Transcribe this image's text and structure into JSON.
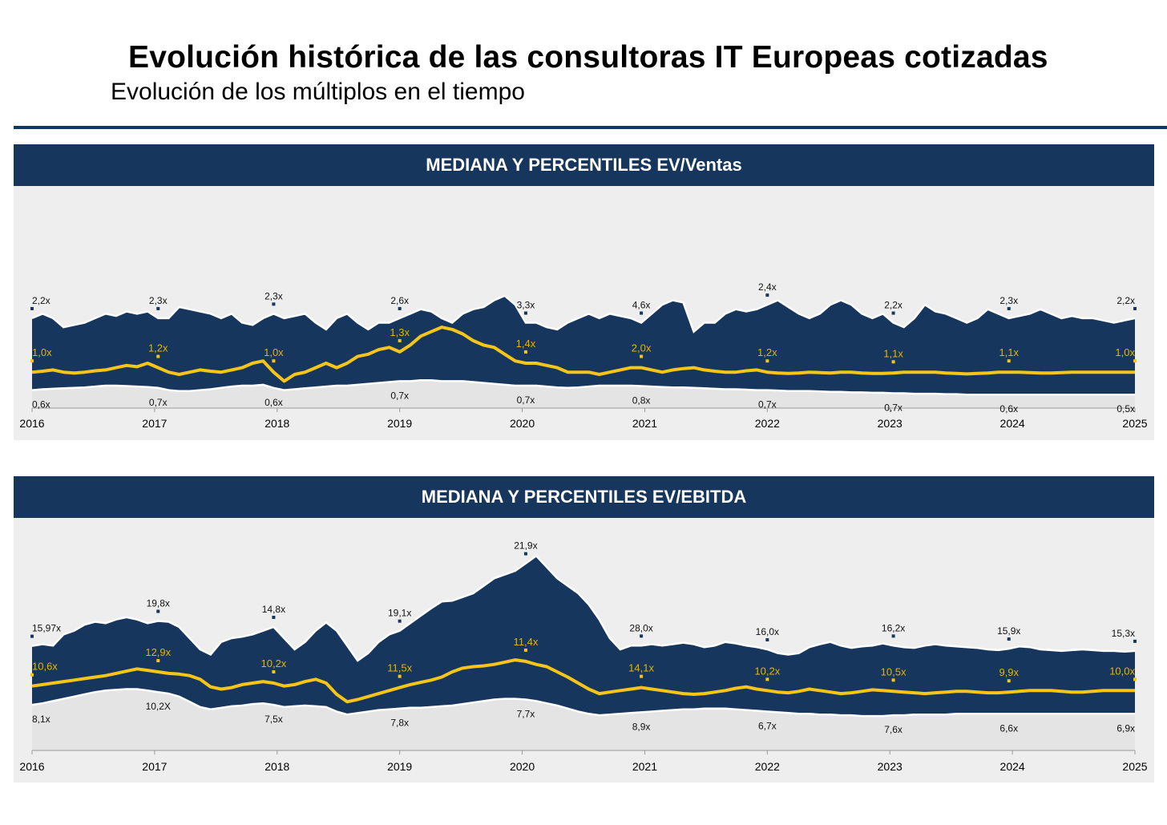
{
  "header": {
    "title": "Evolución histórica de las consultoras IT Europeas cotizadas",
    "subtitle": "Evolución de los múltiplos en el tiempo"
  },
  "colors": {
    "navy": "#17365d",
    "median": "#f5c518",
    "panel_bg": "#eeeeee",
    "low_band": "#e4e4e4",
    "edge": "#ffffff",
    "median_label": "#e8b400"
  },
  "chart_data": [
    {
      "type": "area",
      "title": "MEDIANA Y PERCENTILES EV/Ventas",
      "x_ticks": [
        "2016",
        "2017",
        "2018",
        "2019",
        "2020",
        "2021",
        "2022",
        "2023",
        "2024",
        "2025"
      ],
      "ylim": [
        0.2,
        5.0
      ],
      "series": [
        {
          "role": "upper",
          "values": [
            2.2,
            2.3,
            2.2,
            2.0,
            2.05,
            2.1,
            2.2,
            2.3,
            2.25,
            2.35,
            2.3,
            2.35,
            2.2,
            2.2,
            2.45,
            2.4,
            2.35,
            2.3,
            2.2,
            2.3,
            2.1,
            2.05,
            2.2,
            2.3,
            2.2,
            2.25,
            2.3,
            2.1,
            1.95,
            2.2,
            2.3,
            2.1,
            1.95,
            2.1,
            2.1,
            2.2,
            2.3,
            2.4,
            2.35,
            2.2,
            2.1,
            2.3,
            2.4,
            2.45,
            2.6,
            2.7,
            2.5,
            2.1,
            2.1,
            2.0,
            1.95,
            2.1,
            2.2,
            2.3,
            2.2,
            2.3,
            2.25,
            2.2,
            2.1,
            2.3,
            2.5,
            2.6,
            2.55,
            1.9,
            2.1,
            2.1,
            2.3,
            2.4,
            2.35,
            2.4,
            2.5,
            2.6,
            2.45,
            2.3,
            2.2,
            2.3,
            2.5,
            2.6,
            2.5,
            2.3,
            2.2,
            2.3,
            2.1,
            2.0,
            2.2,
            2.5,
            2.35,
            2.3,
            2.2,
            2.1,
            2.2,
            2.4,
            2.3,
            2.2,
            2.25,
            2.3,
            2.4,
            2.3,
            2.2,
            2.25,
            2.2,
            2.2,
            2.15,
            2.1,
            2.15,
            2.2
          ]
        },
        {
          "role": "median",
          "values": [
            1.0,
            1.02,
            1.05,
            1.0,
            0.98,
            1.0,
            1.03,
            1.05,
            1.1,
            1.15,
            1.12,
            1.2,
            1.1,
            1.0,
            0.95,
            1.0,
            1.05,
            1.02,
            1.0,
            1.05,
            1.1,
            1.2,
            1.25,
            1.0,
            0.8,
            0.95,
            1.0,
            1.1,
            1.2,
            1.1,
            1.2,
            1.35,
            1.4,
            1.5,
            1.55,
            1.45,
            1.6,
            1.8,
            1.9,
            2.0,
            1.95,
            1.85,
            1.7,
            1.6,
            1.55,
            1.4,
            1.25,
            1.2,
            1.2,
            1.15,
            1.1,
            1.0,
            1.0,
            1.0,
            0.95,
            1.0,
            1.05,
            1.1,
            1.1,
            1.05,
            1.0,
            1.05,
            1.08,
            1.1,
            1.05,
            1.02,
            1.0,
            1.0,
            1.03,
            1.05,
            1.0,
            0.98,
            0.97,
            0.98,
            1.0,
            0.99,
            0.98,
            1.0,
            1.0,
            0.98,
            0.97,
            0.97,
            0.98,
            1.0,
            1.0,
            1.0,
            1.0,
            0.98,
            0.97,
            0.96,
            0.97,
            0.98,
            1.0,
            1.0,
            1.0,
            0.99,
            0.98,
            0.98,
            0.99,
            1.0,
            1.0,
            1.0,
            1.0,
            1.0,
            1.0,
            1.0
          ]
        },
        {
          "role": "lower",
          "values": [
            0.6,
            0.62,
            0.63,
            0.64,
            0.65,
            0.66,
            0.68,
            0.7,
            0.7,
            0.69,
            0.68,
            0.67,
            0.65,
            0.6,
            0.58,
            0.58,
            0.6,
            0.62,
            0.65,
            0.68,
            0.7,
            0.7,
            0.72,
            0.65,
            0.6,
            0.62,
            0.64,
            0.66,
            0.68,
            0.7,
            0.7,
            0.72,
            0.74,
            0.76,
            0.78,
            0.8,
            0.8,
            0.82,
            0.82,
            0.8,
            0.8,
            0.8,
            0.78,
            0.76,
            0.74,
            0.72,
            0.7,
            0.7,
            0.7,
            0.68,
            0.66,
            0.65,
            0.66,
            0.68,
            0.7,
            0.7,
            0.7,
            0.7,
            0.69,
            0.68,
            0.67,
            0.66,
            0.66,
            0.65,
            0.64,
            0.63,
            0.62,
            0.62,
            0.61,
            0.6,
            0.6,
            0.59,
            0.58,
            0.58,
            0.58,
            0.57,
            0.56,
            0.56,
            0.55,
            0.55,
            0.54,
            0.54,
            0.53,
            0.53,
            0.52,
            0.52,
            0.52,
            0.51,
            0.51,
            0.5,
            0.5,
            0.5,
            0.5,
            0.5,
            0.5,
            0.5,
            0.5,
            0.5,
            0.5,
            0.5,
            0.5,
            0.5,
            0.5,
            0.5,
            0.5,
            0.5
          ]
        }
      ],
      "annotations": [
        {
          "year": 2016,
          "upper": "2,2x",
          "median": "1,0x",
          "lower": "0,6x"
        },
        {
          "year": 2017,
          "upper": "2,3x",
          "median": "1,2x",
          "lower": "0,7x"
        },
        {
          "year": 2018,
          "upper": "2,3x",
          "median": "1,0x",
          "lower": "0,6x"
        },
        {
          "year": 2019,
          "upper": "2,6x",
          "median": "1,3x",
          "lower": "0,7x"
        },
        {
          "year": 2020,
          "upper": "3,3x",
          "median": "1,4x",
          "lower": "0,7x"
        },
        {
          "year": 2021,
          "upper": "4,6x",
          "median": "2,0x",
          "lower": "0,8x"
        },
        {
          "year": 2022,
          "upper": "2,4x",
          "median": "1,2x",
          "lower": "0,7x"
        },
        {
          "year": 2023,
          "upper": "2,2x",
          "median": "1,1x",
          "lower": "0,7x"
        },
        {
          "year": 2024,
          "upper": "2,3x",
          "median": "1,1x",
          "lower": "0,6x"
        },
        {
          "year": 2025,
          "upper": "2,2x",
          "median": "1,0x",
          "lower": "0,5x"
        }
      ]
    },
    {
      "type": "area",
      "title": "MEDIANA Y PERCENTILES EV/EBITDA",
      "x_ticks": [
        "2016",
        "2017",
        "2018",
        "2019",
        "2020",
        "2021",
        "2022",
        "2023",
        "2024",
        "2025"
      ],
      "ylim": [
        2,
        32
      ],
      "series": [
        {
          "role": "upper",
          "values": [
            15.97,
            16.2,
            16.0,
            17.5,
            18.0,
            18.8,
            19.2,
            19.0,
            19.5,
            19.8,
            19.5,
            19.0,
            19.3,
            19.2,
            18.5,
            17.0,
            15.5,
            14.8,
            16.5,
            17.0,
            17.2,
            17.5,
            18.0,
            18.5,
            17.0,
            15.5,
            16.5,
            18.0,
            19.1,
            18.0,
            16.0,
            14.0,
            15.0,
            16.5,
            17.5,
            18.0,
            19.0,
            20.0,
            21.0,
            21.9,
            22.0,
            22.5,
            23.0,
            24.0,
            25.0,
            25.5,
            26.0,
            27.0,
            28.0,
            26.5,
            25.0,
            24.0,
            23.0,
            21.5,
            19.5,
            17.0,
            15.5,
            16.0,
            16.0,
            16.2,
            16.0,
            16.2,
            16.4,
            16.2,
            15.8,
            16.0,
            16.5,
            16.3,
            16.0,
            15.8,
            15.5,
            15.0,
            14.8,
            15.0,
            15.8,
            16.2,
            16.5,
            16.0,
            15.7,
            15.9,
            16.0,
            16.3,
            16.0,
            15.8,
            15.7,
            16.0,
            16.2,
            16.0,
            15.9,
            15.8,
            15.7,
            15.5,
            15.4,
            15.6,
            15.9,
            15.8,
            15.5,
            15.4,
            15.3,
            15.4,
            15.5,
            15.4,
            15.3,
            15.3,
            15.2,
            15.3
          ]
        },
        {
          "role": "median",
          "values": [
            10.6,
            10.8,
            11.0,
            11.2,
            11.4,
            11.6,
            11.8,
            12.0,
            12.3,
            12.6,
            12.9,
            12.7,
            12.5,
            12.3,
            12.2,
            12.0,
            11.5,
            10.5,
            10.2,
            10.4,
            10.8,
            11.0,
            11.2,
            11.0,
            10.6,
            10.8,
            11.2,
            11.5,
            11.0,
            9.5,
            8.5,
            8.8,
            9.2,
            9.6,
            10.0,
            10.4,
            10.8,
            11.1,
            11.4,
            11.8,
            12.5,
            13.0,
            13.2,
            13.3,
            13.5,
            13.8,
            14.1,
            13.9,
            13.5,
            13.2,
            12.5,
            11.8,
            11.0,
            10.2,
            9.6,
            9.8,
            10.0,
            10.2,
            10.4,
            10.2,
            10.0,
            9.8,
            9.6,
            9.5,
            9.6,
            9.8,
            10.0,
            10.3,
            10.5,
            10.2,
            10.0,
            9.8,
            9.7,
            9.9,
            10.2,
            10.0,
            9.8,
            9.6,
            9.7,
            9.9,
            10.1,
            10.0,
            9.9,
            9.8,
            9.7,
            9.6,
            9.7,
            9.8,
            9.9,
            9.9,
            9.8,
            9.7,
            9.7,
            9.8,
            9.9,
            10.0,
            10.0,
            10.0,
            9.9,
            9.8,
            9.8,
            9.9,
            10.0,
            10.0,
            10.0,
            10.0
          ]
        },
        {
          "role": "lower",
          "values": [
            8.1,
            8.3,
            8.6,
            8.9,
            9.2,
            9.5,
            9.8,
            10.0,
            10.1,
            10.2,
            10.2,
            10.0,
            9.8,
            9.6,
            9.2,
            8.5,
            7.8,
            7.5,
            7.7,
            7.9,
            8.0,
            8.2,
            8.3,
            8.1,
            7.8,
            7.9,
            8.0,
            7.9,
            7.8,
            7.2,
            6.8,
            7.0,
            7.2,
            7.4,
            7.5,
            7.6,
            7.7,
            7.7,
            7.8,
            7.9,
            8.0,
            8.2,
            8.4,
            8.6,
            8.8,
            8.9,
            8.9,
            8.8,
            8.6,
            8.3,
            8.0,
            7.6,
            7.2,
            6.9,
            6.7,
            6.8,
            6.9,
            7.0,
            7.1,
            7.2,
            7.3,
            7.4,
            7.5,
            7.5,
            7.6,
            7.6,
            7.6,
            7.5,
            7.4,
            7.3,
            7.2,
            7.1,
            7.0,
            6.9,
            6.9,
            6.8,
            6.8,
            6.7,
            6.7,
            6.6,
            6.6,
            6.6,
            6.7,
            6.7,
            6.8,
            6.8,
            6.8,
            6.8,
            6.9,
            6.9,
            6.9,
            6.9,
            6.9,
            6.9,
            6.9,
            6.9,
            6.9,
            6.9,
            6.9,
            6.9,
            6.9,
            6.9,
            6.9,
            6.9,
            6.9,
            6.9
          ]
        }
      ],
      "annotations": [
        {
          "year": 2016,
          "upper": "15,97x",
          "median": "10,6x",
          "lower": "8,1x"
        },
        {
          "year": 2017,
          "upper": "19,8x",
          "median": "12,9x",
          "lower": "10,2X"
        },
        {
          "year": 2018,
          "upper": "14,8x",
          "median": "10,2x",
          "lower": "7,5x"
        },
        {
          "year": 2019,
          "upper": "19,1x",
          "median": "11,5x",
          "lower": "7,8x"
        },
        {
          "year": 2020,
          "upper": "21,9x",
          "median": "11,4x",
          "lower": "7,7x"
        },
        {
          "year": 2021,
          "upper": "28,0x",
          "median": "14,1x",
          "lower": "8,9x"
        },
        {
          "year": 2022,
          "upper": "16,0x",
          "median": "10,2x",
          "lower": "6,7x"
        },
        {
          "year": 2023,
          "upper": "16,2x",
          "median": "10,5x",
          "lower": "7,6x"
        },
        {
          "year": 2024,
          "upper": "15,9x",
          "median": "9,9x",
          "lower": "6,6x"
        },
        {
          "year": 2025,
          "upper": "15,3x",
          "median": "10,0x",
          "lower": "6,9x"
        }
      ]
    }
  ]
}
